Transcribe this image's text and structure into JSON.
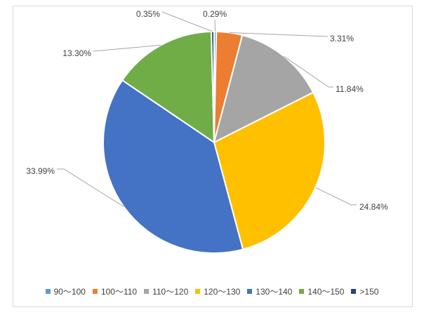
{
  "chart_data": {
    "type": "pie",
    "title": "",
    "slices": [
      {
        "name": "90～100",
        "value": 0.29,
        "label": "0.29%",
        "color": "#5B9BD5"
      },
      {
        "name": "100～110",
        "value": 3.31,
        "label": "3.31%",
        "color": "#ED7D31"
      },
      {
        "name": "110～120",
        "value": 11.84,
        "label": "11.84%",
        "color": "#A5A5A5"
      },
      {
        "name": "120～130",
        "value": 24.84,
        "label": "24.84%",
        "color": "#FFC000"
      },
      {
        "name": "130～140",
        "value": 33.99,
        "label": "33.99%",
        "color": "#4472C4"
      },
      {
        "name": "140～150",
        "value": 13.3,
        "label": "13.30%",
        "color": "#70AD47"
      },
      {
        "name": ">150",
        "value": 0.35,
        "label": "0.35%",
        "color": "#264478"
      }
    ],
    "start": "12 o'clock",
    "direction": "clockwise",
    "legend_position": "bottom"
  }
}
